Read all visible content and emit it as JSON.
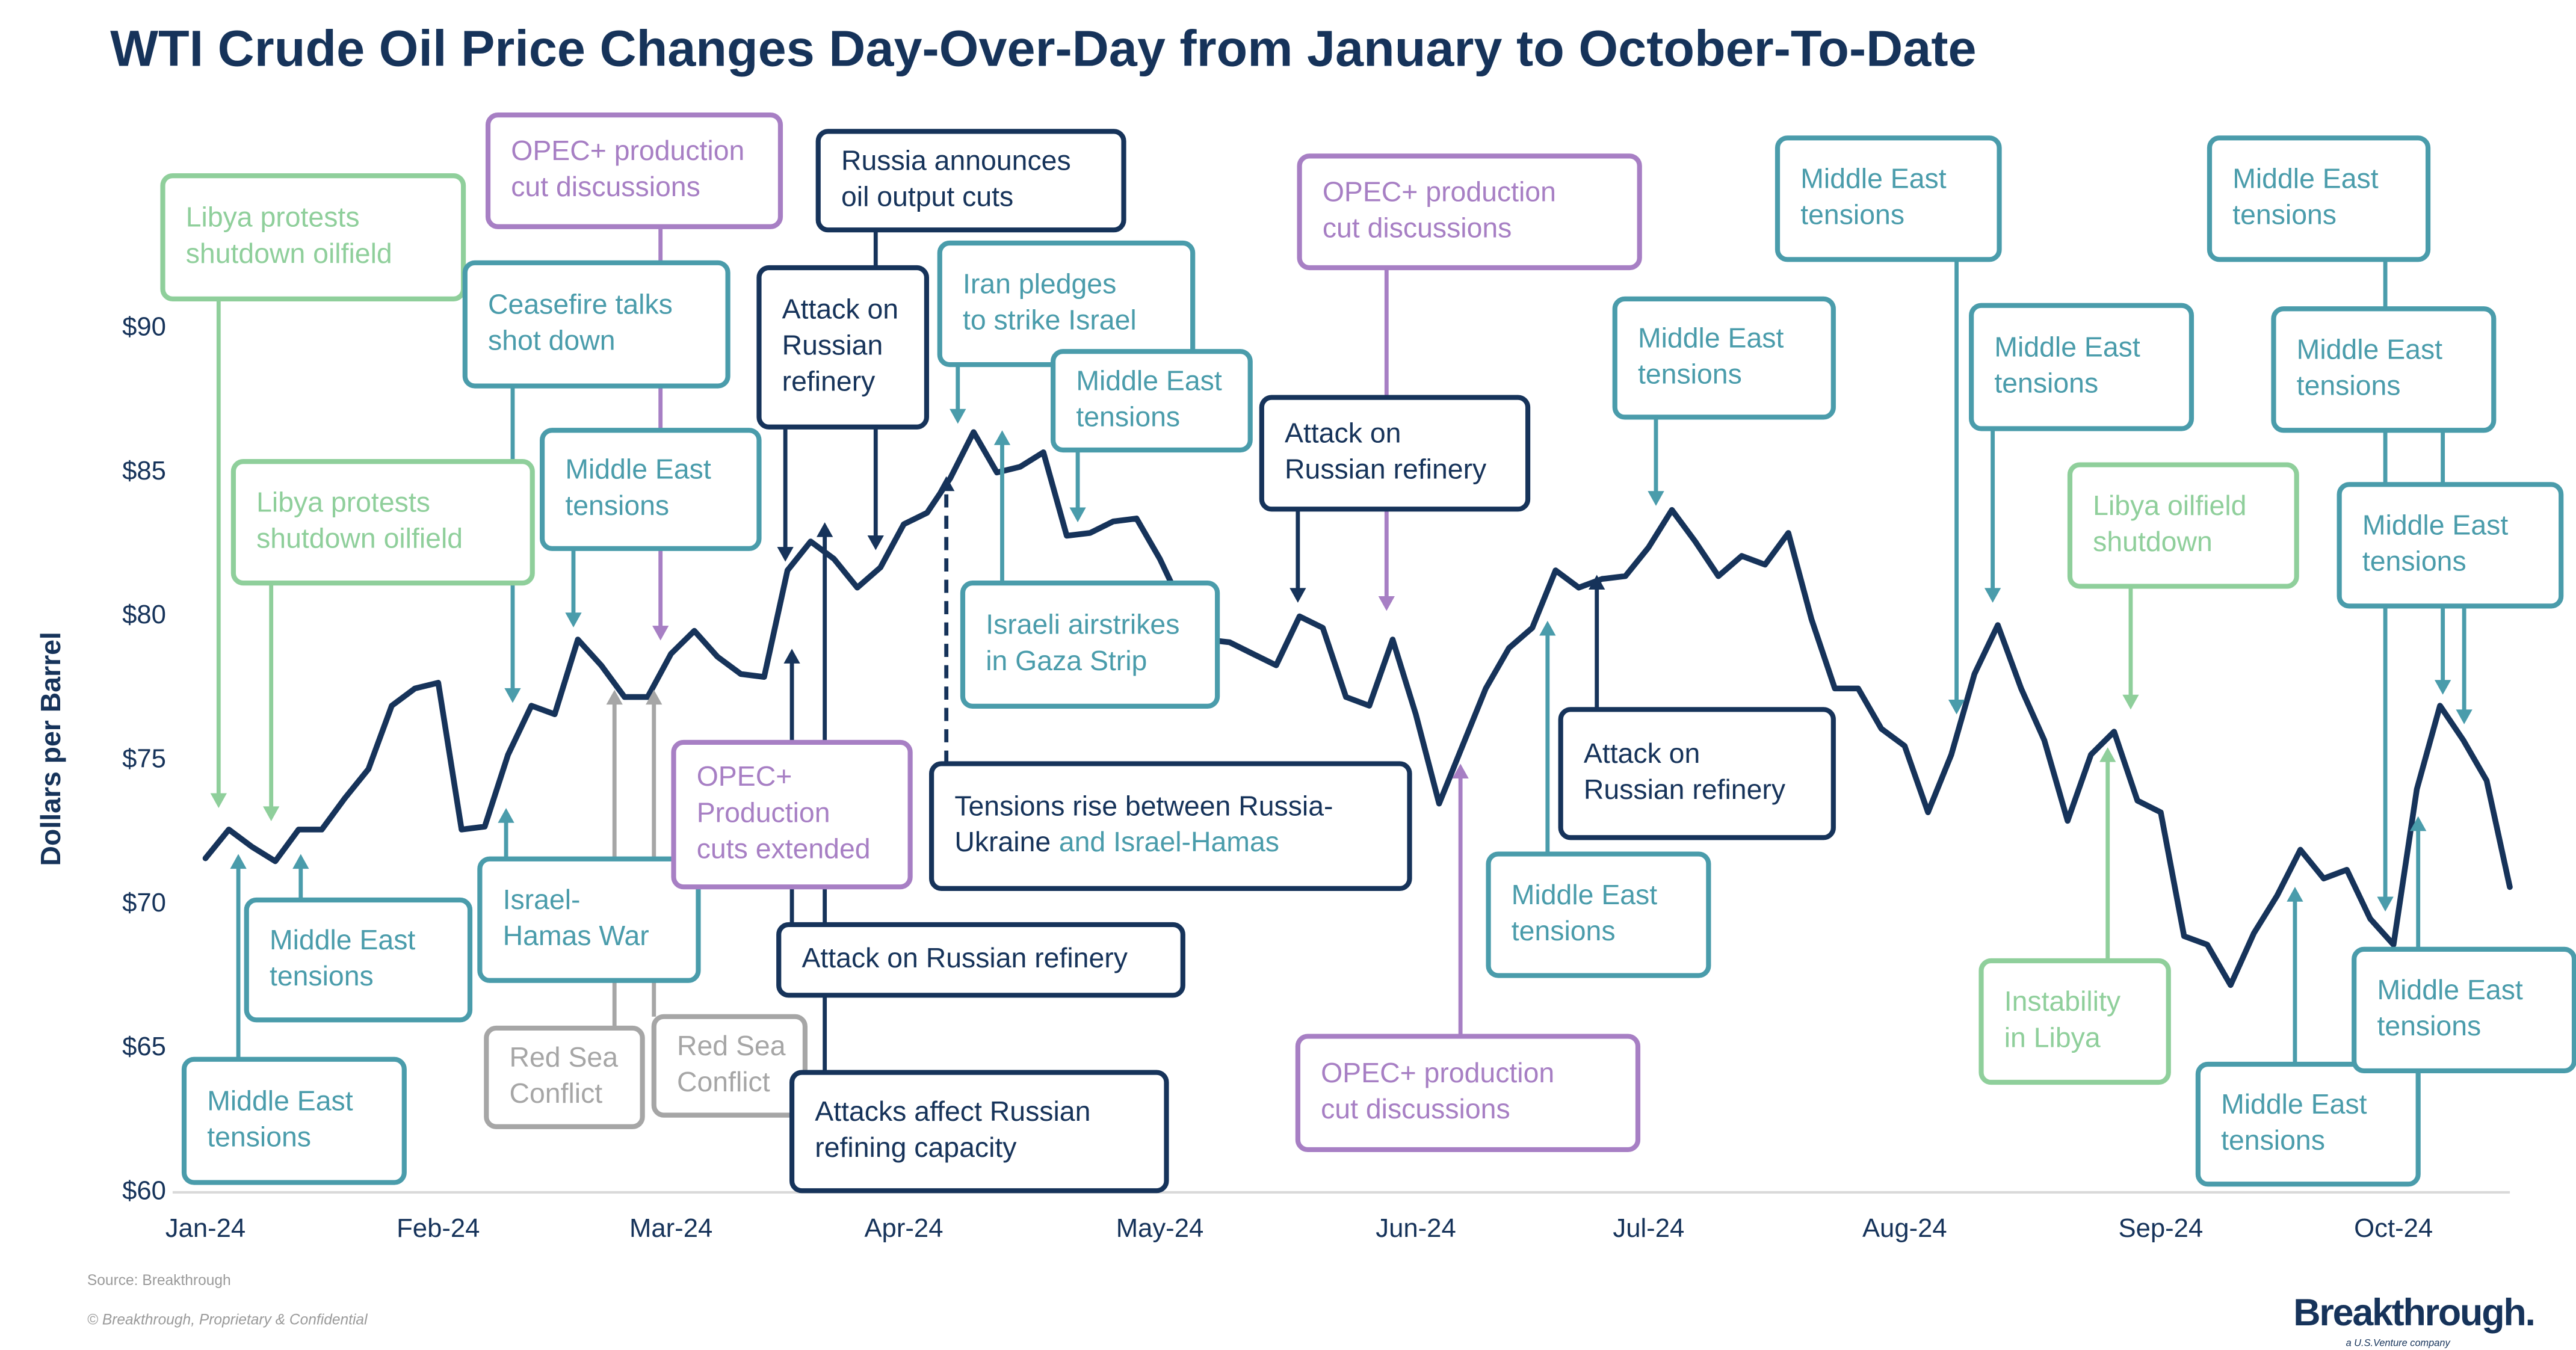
{
  "chart_data": {
    "type": "line",
    "title": "WTI Crude Oil Price Changes Day-Over-Day from January to October-To-Date",
    "y_label": "Dollars per Barrel",
    "color": "#16335a",
    "categories": [
      "Jan-24",
      null,
      null,
      null,
      null,
      null,
      null,
      null,
      null,
      null,
      "Feb-24",
      null,
      null,
      null,
      null,
      null,
      null,
      null,
      null,
      null,
      "Mar-24",
      null,
      null,
      null,
      null,
      null,
      null,
      null,
      null,
      null,
      "Apr-24",
      null,
      null,
      null,
      null,
      null,
      null,
      null,
      null,
      null,
      null,
      "May-24",
      null,
      null,
      null,
      null,
      null,
      null,
      null,
      null,
      null,
      null,
      "Jun-24",
      null,
      null,
      null,
      null,
      null,
      null,
      null,
      null,
      null,
      "Jul-24",
      null,
      null,
      null,
      null,
      null,
      null,
      null,
      null,
      null,
      null,
      "Aug-24",
      null,
      null,
      null,
      null,
      null,
      null,
      null,
      null,
      null,
      null,
      "Sep-24",
      null,
      null,
      null,
      null,
      null,
      null,
      null,
      null,
      null,
      "Oct-24",
      null,
      null,
      null,
      null,
      null
    ],
    "values": [
      71.6,
      72.6,
      72.0,
      71.5,
      72.6,
      72.6,
      73.7,
      74.7,
      76.9,
      77.5,
      77.7,
      72.6,
      72.7,
      75.2,
      76.9,
      76.6,
      79.2,
      78.3,
      77.2,
      77.2,
      78.7,
      79.5,
      78.6,
      78.0,
      77.9,
      81.6,
      82.6,
      82.0,
      81.0,
      81.7,
      83.2,
      83.6,
      84.8,
      86.4,
      85.0,
      85.2,
      85.7,
      82.8,
      82.9,
      83.3,
      83.4,
      82.0,
      80.3,
      79.2,
      79.1,
      78.7,
      78.3,
      80.0,
      79.6,
      77.2,
      76.9,
      79.2,
      76.6,
      73.5,
      75.5,
      77.5,
      78.9,
      79.6,
      81.6,
      81.0,
      81.3,
      81.4,
      82.4,
      83.7,
      82.6,
      81.4,
      82.1,
      81.8,
      82.9,
      79.9,
      77.5,
      77.5,
      76.1,
      75.5,
      73.2,
      75.2,
      78.0,
      79.7,
      77.5,
      75.7,
      72.9,
      75.2,
      76.0,
      73.6,
      73.2,
      68.9,
      68.6,
      67.2,
      69.0,
      70.3,
      71.9,
      70.9,
      71.2,
      69.5,
      68.6,
      74.0,
      76.9,
      75.7,
      74.3,
      70.6
    ],
    "ylim": [
      60,
      90
    ],
    "yticks": [
      {
        "value": 60,
        "label": "$60"
      },
      {
        "value": 65,
        "label": "$65"
      },
      {
        "value": 70,
        "label": "$70"
      },
      {
        "value": 75,
        "label": "$75"
      },
      {
        "value": 80,
        "label": "$80"
      },
      {
        "value": 85,
        "label": "$85"
      },
      {
        "value": 90,
        "label": "$90"
      }
    ],
    "grid": false,
    "annotations": [
      {
        "lines": [
          "Libya protests",
          "shutdown oilfield"
        ],
        "color": "#8fcf9b"
      },
      {
        "lines": [
          "OPEC+ production",
          "cut discussions"
        ],
        "color": "#a77fc4"
      },
      {
        "lines": [
          "Russia announces",
          "oil output cuts"
        ],
        "color": "#16335a"
      },
      {
        "lines": [
          "Attack on",
          "Russian",
          "refinery"
        ],
        "color": "#16335a"
      },
      {
        "lines": [
          "Iran pledges",
          "to strike Israel"
        ],
        "color": "#4a9cab"
      },
      {
        "lines": [
          "Middle East",
          "tensions"
        ],
        "color": "#4a9cab"
      },
      {
        "lines": [
          "Ceasefire talks",
          "shot down"
        ],
        "color": "#4a9cab"
      },
      {
        "lines": [
          "Libya protests",
          "shutdown oilfield"
        ],
        "color": "#8fcf9b"
      },
      {
        "lines": [
          "Middle East",
          "tensions"
        ],
        "color": "#4a9cab"
      },
      {
        "lines": [
          "Attack on",
          "Russian refinery"
        ],
        "color": "#16335a"
      },
      {
        "lines": [
          "OPEC+ production",
          "cut discussions"
        ],
        "color": "#a77fc4"
      },
      {
        "lines": [
          "Israeli airstrikes",
          "in Gaza Strip"
        ],
        "color": "#4a9cab"
      },
      {
        "lines": [
          "Middle East",
          "tensions"
        ],
        "color": "#4a9cab"
      },
      {
        "lines": [
          "Middle East",
          "tensions"
        ],
        "color": "#4a9cab"
      },
      {
        "lines": [
          "Middle East",
          "tensions"
        ],
        "color": "#4a9cab"
      },
      {
        "lines": [
          "Middle East",
          "tensions"
        ],
        "color": "#4a9cab"
      },
      {
        "lines": [
          "Middle East",
          "tensions"
        ],
        "color": "#4a9cab"
      },
      {
        "lines": [
          "Middle East",
          "tensions"
        ],
        "color": "#4a9cab"
      },
      {
        "lines": [
          "Libya oilfield",
          "shutdown"
        ],
        "color": "#8fcf9b"
      },
      {
        "lines": [
          "Middle East",
          "tensions"
        ],
        "color": "#4a9cab"
      },
      {
        "lines": [
          "Middle East",
          "tensions"
        ],
        "color": "#4a9cab"
      },
      {
        "lines": [
          "Israel-",
          "Hamas War"
        ],
        "color": "#4a9cab"
      },
      {
        "lines": [
          "Red Sea",
          "Conflict"
        ],
        "color": "#a6a6a6"
      },
      {
        "lines": [
          "Red Sea",
          "Conflict"
        ],
        "color": "#a6a6a6"
      },
      {
        "lines": [
          "OPEC+",
          "Production",
          "cuts extended"
        ],
        "color": "#a77fc4"
      },
      {
        "lines": [
          "Attack on Russian refinery"
        ],
        "color": "#16335a"
      },
      {
        "lines": [
          "Attacks affect Russian",
          "refining capacity"
        ],
        "color": "#16335a"
      },
      {
        "lines": [
          "Tensions rise between Russia-",
          "Ukraine",
          "and Israel-Hamas"
        ],
        "color": "#16335a",
        "secondary_color": "#4a9cab"
      },
      {
        "lines": [
          "Attack on",
          "Russian refinery"
        ],
        "color": "#16335a"
      },
      {
        "lines": [
          "Middle East",
          "tensions"
        ],
        "color": "#4a9cab"
      },
      {
        "lines": [
          "OPEC+ production",
          "cut discussions"
        ],
        "color": "#a77fc4"
      },
      {
        "lines": [
          "Instability",
          "in Libya"
        ],
        "color": "#8fcf9b"
      },
      {
        "lines": [
          "Middle East",
          "tensions"
        ],
        "color": "#4a9cab"
      },
      {
        "lines": [
          "Middle East",
          "tensions"
        ],
        "color": "#4a9cab"
      }
    ],
    "source": "Source: Breakthrough",
    "copyright": "© Breakthrough, Proprietary & Confidential",
    "logo": "Breakthrough.",
    "logo_tagline": "a U.S.Venture company"
  }
}
